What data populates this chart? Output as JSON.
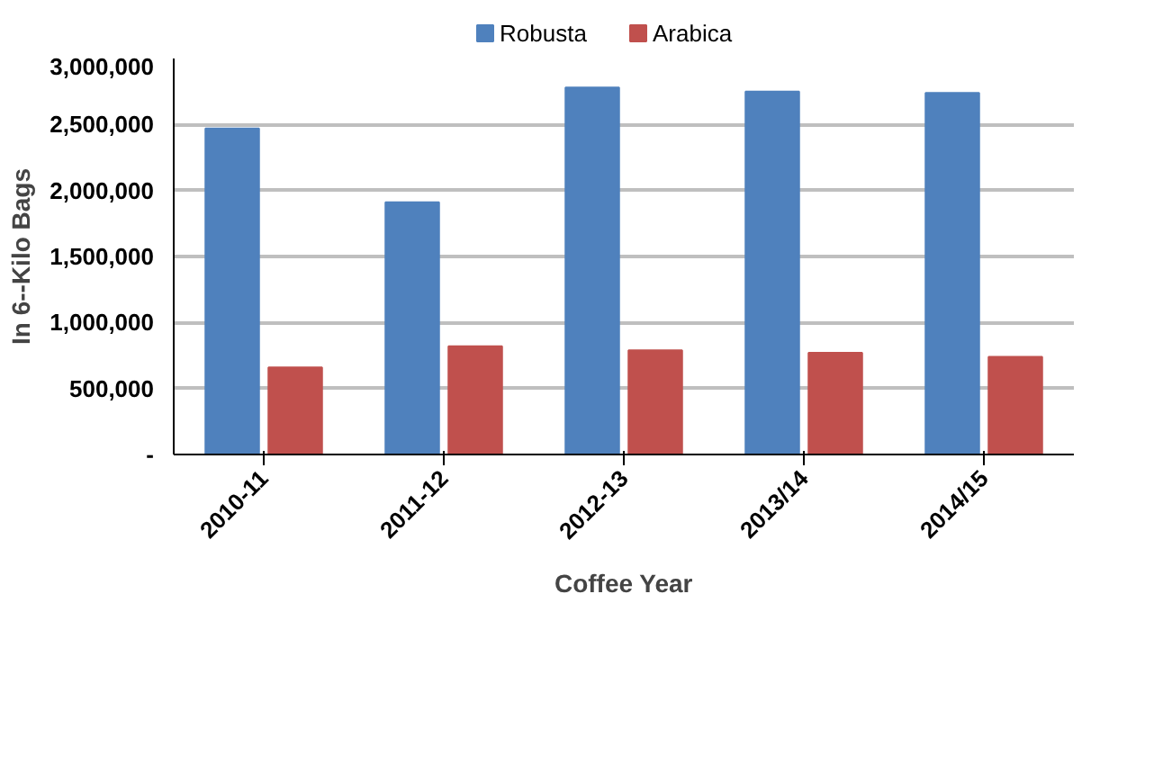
{
  "chart_data": {
    "type": "bar",
    "xlabel": "Coffee Year",
    "ylabel": "In 6--Kilo Bags",
    "categories": [
      "2010-11",
      "2011-12",
      "2012-13",
      "2013/14",
      "2014/15"
    ],
    "series": [
      {
        "name": "Robusta",
        "color": "#4f81bd",
        "values": [
          2470000,
          1910000,
          2780000,
          2750000,
          2740000
        ]
      },
      {
        "name": "Arabica",
        "color": "#c0504d",
        "values": [
          660000,
          820000,
          790000,
          770000,
          740000
        ]
      }
    ],
    "ylim": [
      0,
      3000000
    ],
    "yticks": [
      {
        "value": 0,
        "label": "-"
      },
      {
        "value": 500000,
        "label": "500,000"
      },
      {
        "value": 1000000,
        "label": "1,000,000"
      },
      {
        "value": 1500000,
        "label": "1,500,000"
      },
      {
        "value": 2000000,
        "label": "2,000,000"
      },
      {
        "value": 2500000,
        "label": "2,500,000"
      },
      {
        "value": 3000000,
        "label": "3,000,000"
      }
    ],
    "grid": "y",
    "legend": "top"
  }
}
